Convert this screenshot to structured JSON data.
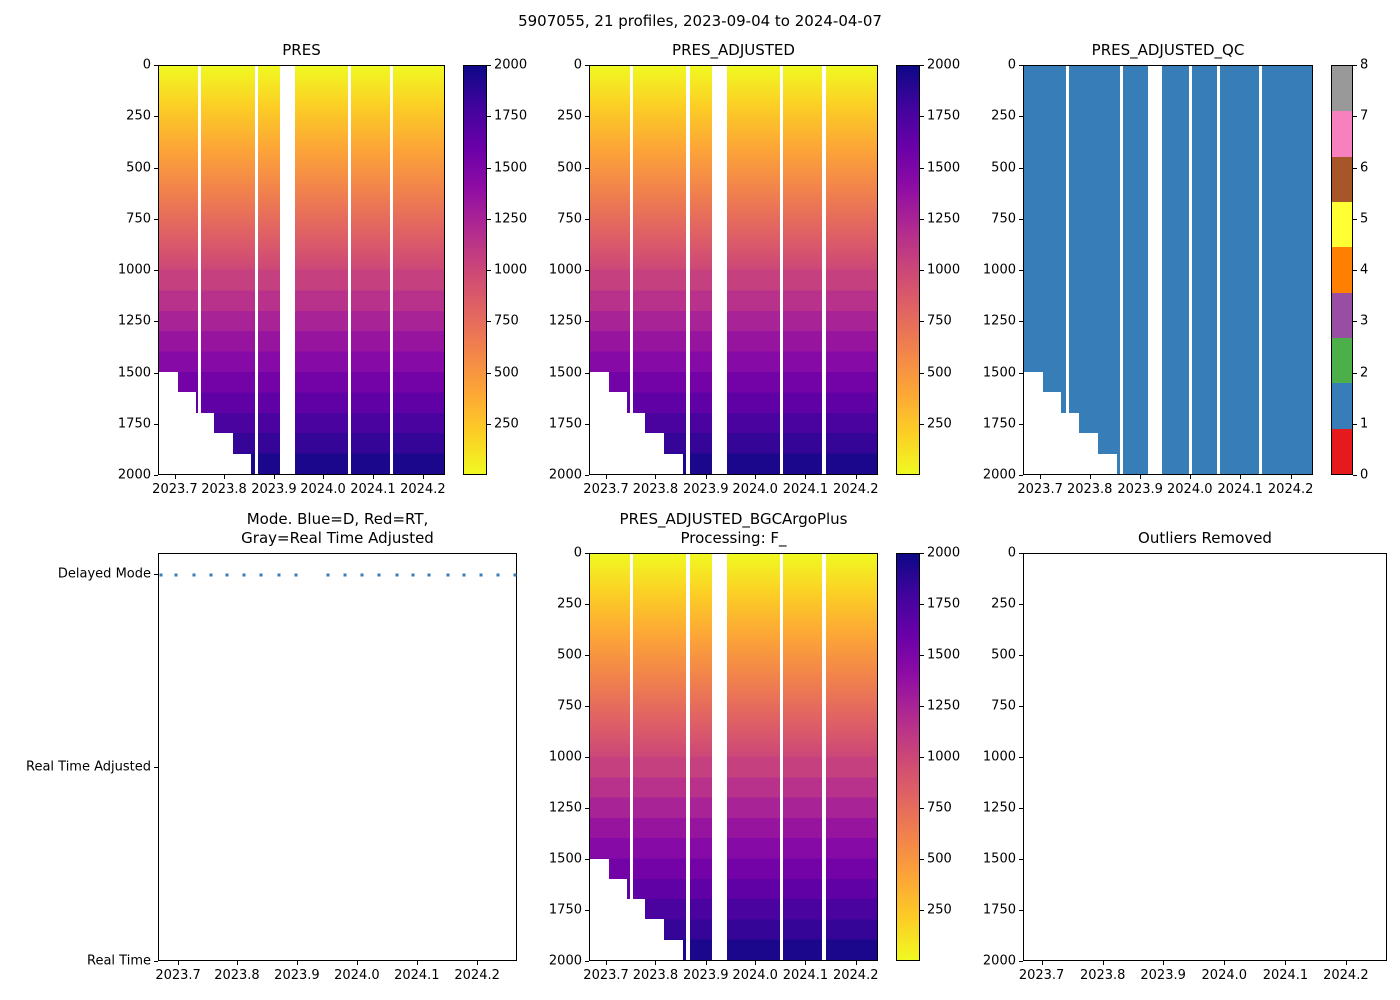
{
  "suptitle": "5907055, 21 profiles, 2023-09-04 to 2024-04-07",
  "colors": {
    "heatmap_top_shallow": "#f0f921",
    "heatmap_bottom_deep": "#0d0887",
    "qc_fill_blue": "#377eb8",
    "mode_dot_blue": "#377eb8",
    "axis_spine": "#000000",
    "qc_colorbar_0_to_8": [
      "#e41a1c",
      "#377eb8",
      "#4daf4a",
      "#984ea3",
      "#ff7f00",
      "#ffff33",
      "#a65628",
      "#f781bf",
      "#999999"
    ]
  },
  "chart_data": [
    {
      "id": "pres",
      "type": "heatmap",
      "title": "PRES",
      "x_ticks": [
        "2023.7",
        "2023.8",
        "2023.9",
        "2024.0",
        "2024.1",
        "2024.2"
      ],
      "y_ticks": [
        "0",
        "250",
        "500",
        "750",
        "1000",
        "1250",
        "1500",
        "1750",
        "2000"
      ],
      "ylim": [
        0,
        2000
      ],
      "y_axis_inverted": true,
      "xlim": [
        2023.666,
        2024.244
      ],
      "colormap": "plasma reversed: yellow = 0 dbar at surface, dark indigo = 2000 dbar at depth",
      "colorbar_ticks": [
        "2000",
        "1750",
        "1500",
        "1250",
        "1000",
        "750",
        "500",
        "250"
      ],
      "colorbar_range": [
        0,
        2000
      ],
      "profile_times_decimal_year": [
        2023.669,
        2023.695,
        2023.725,
        2023.754,
        2023.781,
        2023.809,
        2023.837,
        2023.868,
        2023.896,
        2023.951,
        2023.979,
        2024.007,
        2024.037,
        2024.066,
        2024.094,
        2024.121,
        2024.152,
        2024.18,
        2024.208,
        2024.236,
        2024.265
      ],
      "profile_max_depth_dbar": [
        1500,
        1600,
        1700,
        1800,
        1900,
        2000,
        2000,
        2000,
        2000,
        2000,
        2000,
        2000,
        2000,
        2000,
        2000,
        2000,
        2000,
        2000,
        2000,
        2000,
        2000
      ],
      "note": "cell value equals pressure/depth axis value; gap in data near 2023.92"
    },
    {
      "id": "pres_adjusted",
      "type": "heatmap",
      "title": "PRES_ADJUSTED",
      "x_ticks": [
        "2023.7",
        "2023.8",
        "2023.9",
        "2024.0",
        "2024.1",
        "2024.2"
      ],
      "y_ticks": [
        "0",
        "250",
        "500",
        "750",
        "1000",
        "1250",
        "1500",
        "1750",
        "2000"
      ],
      "ylim": [
        0,
        2000
      ],
      "y_axis_inverted": true,
      "colorbar_ticks": [
        "2000",
        "1750",
        "1500",
        "1250",
        "1000",
        "750",
        "500",
        "250"
      ],
      "colorbar_range": [
        0,
        2000
      ],
      "note": "same data pattern as PRES panel"
    },
    {
      "id": "pres_adjusted_qc",
      "type": "heatmap",
      "title": "PRES_ADJUSTED_QC",
      "x_ticks": [
        "2023.7",
        "2023.8",
        "2023.9",
        "2024.0",
        "2024.1",
        "2024.2"
      ],
      "y_ticks": [
        "0",
        "250",
        "500",
        "750",
        "1000",
        "1250",
        "1500",
        "1750",
        "2000"
      ],
      "ylim": [
        0,
        2000
      ],
      "y_axis_inverted": true,
      "qc_value_everywhere": 1,
      "colorbar_ticks": [
        "8",
        "7",
        "6",
        "5",
        "4",
        "3",
        "2",
        "1",
        "0"
      ],
      "colorbar_type": "discrete 9-color Set1",
      "note": "all profiles flagged QC=1 (blue); same gaps/staircase as PRES"
    },
    {
      "id": "mode",
      "type": "scatter",
      "title": "Mode. Blue=D, Red=RT,\nGray=Real Time Adjusted",
      "x_ticks": [
        "2023.7",
        "2023.8",
        "2023.9",
        "2024.0",
        "2024.1",
        "2024.2"
      ],
      "y_categories": [
        "Real Time",
        "Real Time Adjusted",
        "Delayed Mode"
      ],
      "xlim": [
        2023.666,
        2024.267
      ],
      "points_x_decimal_year": [
        2023.669,
        2023.695,
        2023.725,
        2023.754,
        2023.781,
        2023.809,
        2023.837,
        2023.868,
        2023.896,
        2023.951,
        2023.979,
        2024.007,
        2024.037,
        2024.066,
        2024.094,
        2024.121,
        2024.152,
        2024.18,
        2024.208,
        2024.236,
        2024.265
      ],
      "points_y_mode": "Delayed Mode (all 21 points)"
    },
    {
      "id": "pres_adjusted_bgc",
      "type": "heatmap",
      "title": "PRES_ADJUSTED_BGCArgoPlus\nProcessing: F_",
      "x_ticks": [
        "2023.7",
        "2023.8",
        "2023.9",
        "2024.0",
        "2024.1",
        "2024.2"
      ],
      "y_ticks": [
        "0",
        "250",
        "500",
        "750",
        "1000",
        "1250",
        "1500",
        "1750",
        "2000"
      ],
      "ylim": [
        0,
        2000
      ],
      "y_axis_inverted": true,
      "colorbar_ticks": [
        "2000",
        "1750",
        "1500",
        "1250",
        "1000",
        "750",
        "500",
        "250"
      ],
      "colorbar_range": [
        0,
        2000
      ],
      "note": "same data pattern as PRES panel"
    },
    {
      "id": "outliers_removed",
      "type": "heatmap",
      "title": "Outliers Removed",
      "x_ticks": [
        "2023.7",
        "2023.8",
        "2023.9",
        "2024.0",
        "2024.1",
        "2024.2"
      ],
      "y_ticks": [
        "0",
        "250",
        "500",
        "750",
        "1000",
        "1250",
        "1500",
        "1750",
        "2000"
      ],
      "ylim": [
        0,
        2000
      ],
      "y_axis_inverted": true,
      "empty": true,
      "note": "no outliers plotted - axes empty"
    }
  ]
}
